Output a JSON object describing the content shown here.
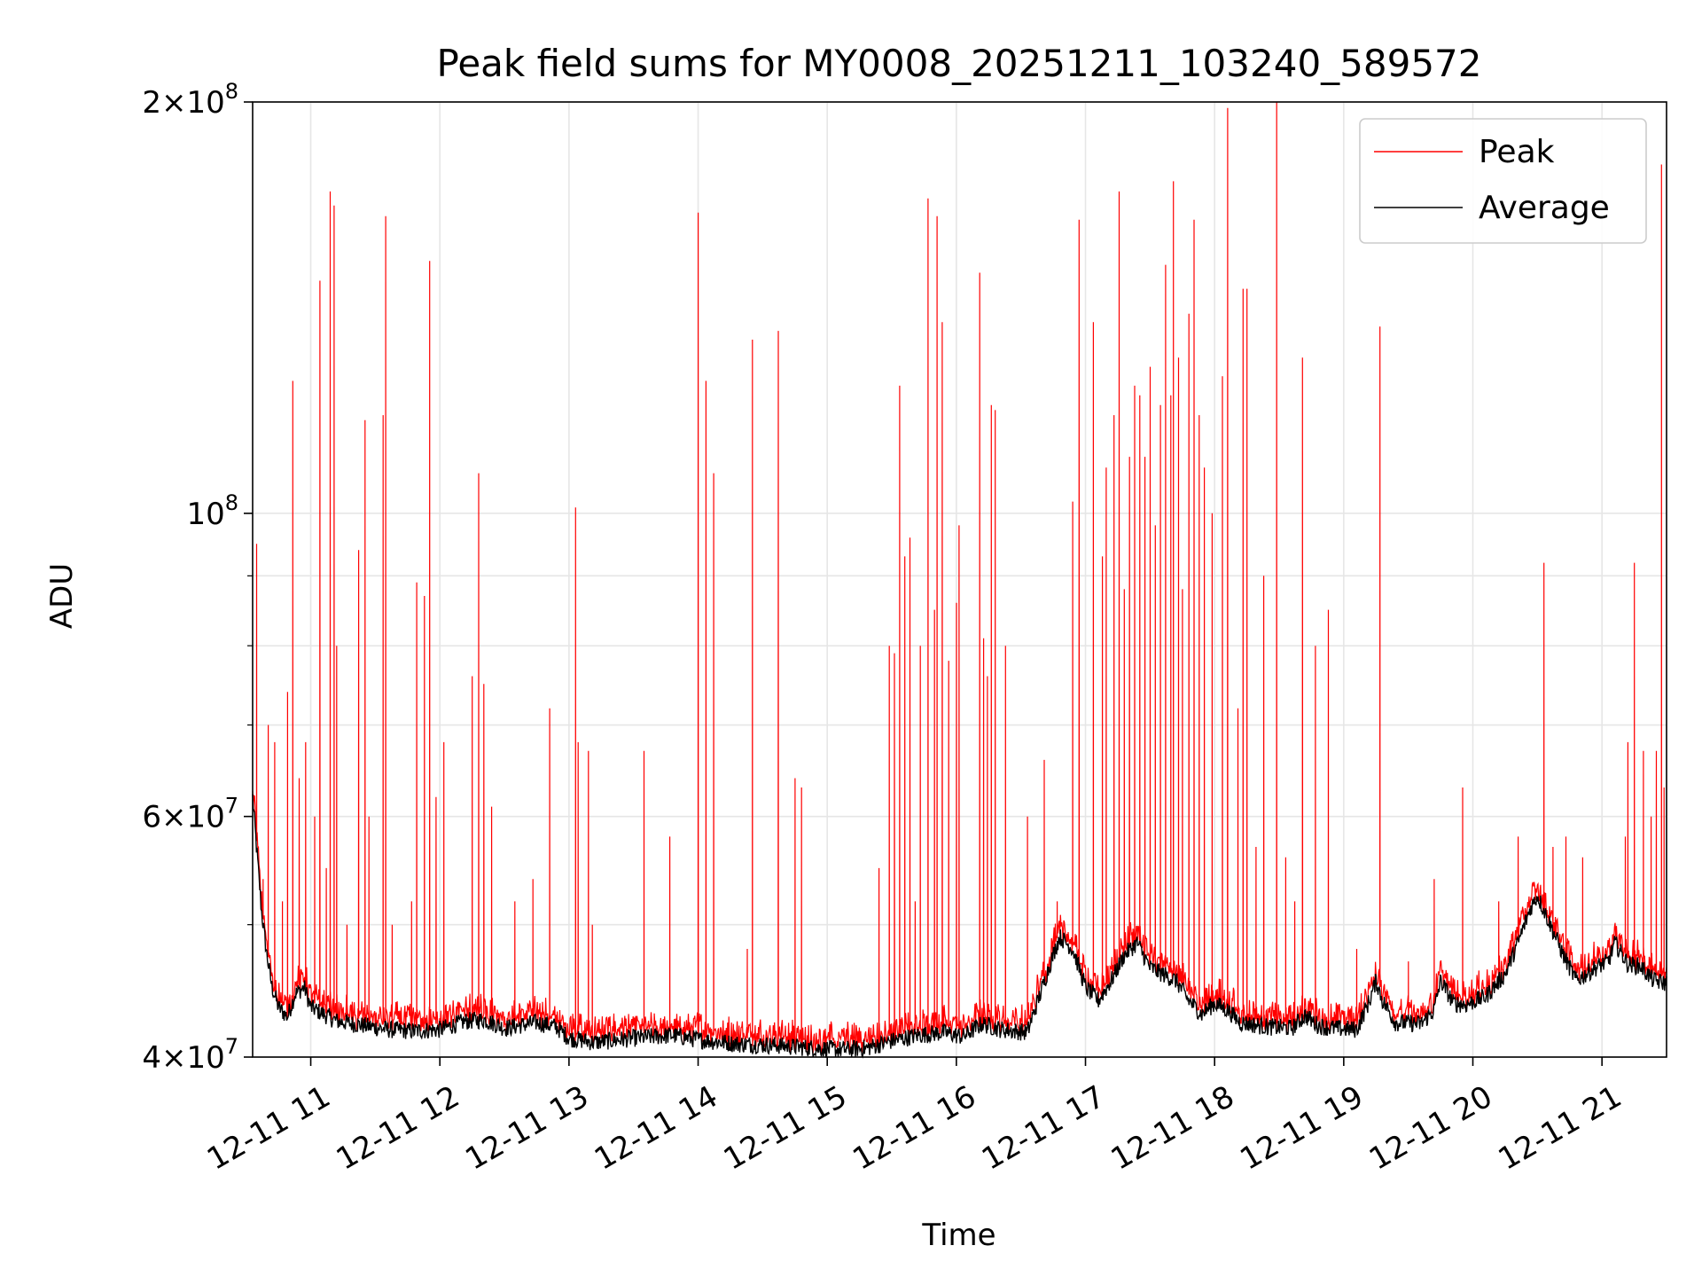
{
  "chart_data": {
    "type": "line",
    "title": "Peak field sums for MY0008_20251211_103240_589572",
    "xlabel": "Time",
    "ylabel": "ADU",
    "yscale": "log",
    "xlim_hours": [
      10.55,
      21.5
    ],
    "ylim": [
      40000000,
      200000000
    ],
    "grid": true,
    "legend_position": "top-right",
    "x_ticks": [
      {
        "hour": 11,
        "label": "12-11 11"
      },
      {
        "hour": 12,
        "label": "12-11 12"
      },
      {
        "hour": 13,
        "label": "12-11 13"
      },
      {
        "hour": 14,
        "label": "12-11 14"
      },
      {
        "hour": 15,
        "label": "12-11 15"
      },
      {
        "hour": 16,
        "label": "12-11 16"
      },
      {
        "hour": 17,
        "label": "12-11 17"
      },
      {
        "hour": 18,
        "label": "12-11 18"
      },
      {
        "hour": 19,
        "label": "12-11 19"
      },
      {
        "hour": 20,
        "label": "12-11 20"
      },
      {
        "hour": 21,
        "label": "12-11 21"
      }
    ],
    "y_major_ticks": [
      {
        "value": 40000000,
        "mant": "4",
        "exp": "7"
      },
      {
        "value": 60000000,
        "mant": "6",
        "exp": "7"
      },
      {
        "value": 100000000,
        "mant": "",
        "exp": "8"
      },
      {
        "value": 200000000,
        "mant": "2",
        "exp": "8"
      }
    ],
    "y_minor_grid": [
      50000000,
      70000000,
      80000000,
      90000000
    ],
    "series": [
      {
        "name": "Peak",
        "color": "#ff0000",
        "description": "Red line: follows average baseline with frequent narrow spikes",
        "spikes": [
          [
            10.58,
            95000000
          ],
          [
            10.63,
            54000000
          ],
          [
            10.67,
            70000000
          ],
          [
            10.72,
            68000000
          ],
          [
            10.78,
            52000000
          ],
          [
            10.82,
            74000000
          ],
          [
            10.86,
            125000000
          ],
          [
            10.91,
            64000000
          ],
          [
            10.96,
            68000000
          ],
          [
            11.03,
            60000000
          ],
          [
            11.07,
            148000000
          ],
          [
            11.12,
            55000000
          ],
          [
            11.15,
            172000000
          ],
          [
            11.18,
            168000000
          ],
          [
            11.2,
            80000000
          ],
          [
            11.28,
            50000000
          ],
          [
            11.37,
            94000000
          ],
          [
            11.42,
            117000000
          ],
          [
            11.45,
            60000000
          ],
          [
            11.56,
            118000000
          ],
          [
            11.58,
            165000000
          ],
          [
            11.63,
            50000000
          ],
          [
            11.78,
            52000000
          ],
          [
            11.82,
            89000000
          ],
          [
            11.88,
            87000000
          ],
          [
            11.92,
            153000000
          ],
          [
            11.97,
            62000000
          ],
          [
            12.03,
            68000000
          ],
          [
            12.25,
            76000000
          ],
          [
            12.3,
            107000000
          ],
          [
            12.34,
            75000000
          ],
          [
            12.4,
            61000000
          ],
          [
            12.58,
            52000000
          ],
          [
            12.72,
            54000000
          ],
          [
            12.85,
            72000000
          ],
          [
            13.05,
            101000000
          ],
          [
            13.07,
            68000000
          ],
          [
            13.15,
            67000000
          ],
          [
            13.18,
            50000000
          ],
          [
            13.58,
            67000000
          ],
          [
            13.78,
            58000000
          ],
          [
            14.0,
            166000000
          ],
          [
            14.06,
            125000000
          ],
          [
            14.12,
            107000000
          ],
          [
            14.38,
            48000000
          ],
          [
            14.42,
            134000000
          ],
          [
            14.62,
            136000000
          ],
          [
            14.75,
            64000000
          ],
          [
            14.8,
            63000000
          ],
          [
            15.4,
            55000000
          ],
          [
            15.48,
            80000000
          ],
          [
            15.52,
            79000000
          ],
          [
            15.56,
            124000000
          ],
          [
            15.6,
            93000000
          ],
          [
            15.64,
            96000000
          ],
          [
            15.68,
            52000000
          ],
          [
            15.72,
            80000000
          ],
          [
            15.78,
            170000000
          ],
          [
            15.83,
            85000000
          ],
          [
            15.85,
            165000000
          ],
          [
            15.89,
            138000000
          ],
          [
            15.94,
            78000000
          ],
          [
            16.0,
            86000000
          ],
          [
            16.02,
            98000000
          ],
          [
            16.18,
            150000000
          ],
          [
            16.21,
            81000000
          ],
          [
            16.24,
            76000000
          ],
          [
            16.27,
            120000000
          ],
          [
            16.3,
            119000000
          ],
          [
            16.38,
            80000000
          ],
          [
            16.55,
            60000000
          ],
          [
            16.68,
            66000000
          ],
          [
            16.78,
            52000000
          ],
          [
            16.9,
            102000000
          ],
          [
            16.95,
            164000000
          ],
          [
            17.06,
            138000000
          ],
          [
            17.13,
            93000000
          ],
          [
            17.16,
            108000000
          ],
          [
            17.22,
            118000000
          ],
          [
            17.26,
            172000000
          ],
          [
            17.3,
            88000000
          ],
          [
            17.34,
            110000000
          ],
          [
            17.38,
            124000000
          ],
          [
            17.42,
            122000000
          ],
          [
            17.46,
            110000000
          ],
          [
            17.5,
            128000000
          ],
          [
            17.54,
            98000000
          ],
          [
            17.58,
            120000000
          ],
          [
            17.62,
            152000000
          ],
          [
            17.66,
            122000000
          ],
          [
            17.68,
            175000000
          ],
          [
            17.72,
            130000000
          ],
          [
            17.75,
            88000000
          ],
          [
            17.8,
            140000000
          ],
          [
            17.84,
            164000000
          ],
          [
            17.88,
            118000000
          ],
          [
            17.92,
            108000000
          ],
          [
            17.98,
            100000000
          ],
          [
            18.06,
            126000000
          ],
          [
            18.1,
            198000000
          ],
          [
            18.18,
            72000000
          ],
          [
            18.22,
            146000000
          ],
          [
            18.25,
            146000000
          ],
          [
            18.32,
            57000000
          ],
          [
            18.38,
            90000000
          ],
          [
            18.48,
            200000000
          ],
          [
            18.55,
            56000000
          ],
          [
            18.62,
            52000000
          ],
          [
            18.68,
            130000000
          ],
          [
            18.78,
            80000000
          ],
          [
            18.88,
            85000000
          ],
          [
            19.28,
            137000000
          ],
          [
            19.1,
            48000000
          ],
          [
            19.5,
            47000000
          ],
          [
            19.7,
            54000000
          ],
          [
            19.92,
            63000000
          ],
          [
            20.2,
            52000000
          ],
          [
            20.35,
            58000000
          ],
          [
            20.55,
            92000000
          ],
          [
            20.62,
            57000000
          ],
          [
            20.72,
            58000000
          ],
          [
            20.85,
            56000000
          ],
          [
            21.18,
            58000000
          ],
          [
            21.2,
            68000000
          ],
          [
            21.25,
            92000000
          ],
          [
            21.32,
            67000000
          ],
          [
            21.38,
            60000000
          ],
          [
            21.42,
            67000000
          ],
          [
            21.46,
            180000000
          ],
          [
            21.48,
            63000000
          ]
        ]
      },
      {
        "name": "Average",
        "color": "#000000",
        "description": "Black line: slowly varying baseline",
        "baseline": [
          [
            10.55,
            62000000
          ],
          [
            10.58,
            57000000
          ],
          [
            10.62,
            51000000
          ],
          [
            10.66,
            47500000
          ],
          [
            10.7,
            45000000
          ],
          [
            10.75,
            43500000
          ],
          [
            10.82,
            42800000
          ],
          [
            10.88,
            44500000
          ],
          [
            10.95,
            45000000
          ],
          [
            11.0,
            43500000
          ],
          [
            11.1,
            43000000
          ],
          [
            11.2,
            42500000
          ],
          [
            11.4,
            42200000
          ],
          [
            11.6,
            41900000
          ],
          [
            11.8,
            41800000
          ],
          [
            12.0,
            41900000
          ],
          [
            12.2,
            42500000
          ],
          [
            12.35,
            42600000
          ],
          [
            12.5,
            42000000
          ],
          [
            12.75,
            42400000
          ],
          [
            12.9,
            42100000
          ],
          [
            13.0,
            41300000
          ],
          [
            13.2,
            41000000
          ],
          [
            13.5,
            41300000
          ],
          [
            13.8,
            41500000
          ],
          [
            14.0,
            41200000
          ],
          [
            14.3,
            40900000
          ],
          [
            14.6,
            40800000
          ],
          [
            14.9,
            40600000
          ],
          [
            15.1,
            40500000
          ],
          [
            15.3,
            40600000
          ],
          [
            15.5,
            41100000
          ],
          [
            15.7,
            41500000
          ],
          [
            15.9,
            41700000
          ],
          [
            16.05,
            41400000
          ],
          [
            16.2,
            42300000
          ],
          [
            16.35,
            41900000
          ],
          [
            16.55,
            41700000
          ],
          [
            16.65,
            44500000
          ],
          [
            16.75,
            47500000
          ],
          [
            16.8,
            49000000
          ],
          [
            16.9,
            48000000
          ],
          [
            17.0,
            45000000
          ],
          [
            17.1,
            44000000
          ],
          [
            17.2,
            45500000
          ],
          [
            17.3,
            47500000
          ],
          [
            17.4,
            48500000
          ],
          [
            17.5,
            46500000
          ],
          [
            17.6,
            46000000
          ],
          [
            17.7,
            45500000
          ],
          [
            17.8,
            44000000
          ],
          [
            17.9,
            43000000
          ],
          [
            18.0,
            43800000
          ],
          [
            18.1,
            43300000
          ],
          [
            18.2,
            42400000
          ],
          [
            18.4,
            42100000
          ],
          [
            18.6,
            42000000
          ],
          [
            18.7,
            42900000
          ],
          [
            18.8,
            42200000
          ],
          [
            18.9,
            42000000
          ],
          [
            19.1,
            41900000
          ],
          [
            19.2,
            44000000
          ],
          [
            19.25,
            45500000
          ],
          [
            19.3,
            44000000
          ],
          [
            19.4,
            42400000
          ],
          [
            19.6,
            42300000
          ],
          [
            19.7,
            43300000
          ],
          [
            19.75,
            45500000
          ],
          [
            19.85,
            43800000
          ],
          [
            19.95,
            43700000
          ],
          [
            20.1,
            44300000
          ],
          [
            20.25,
            46000000
          ],
          [
            20.35,
            48500000
          ],
          [
            20.45,
            51500000
          ],
          [
            20.5,
            52500000
          ],
          [
            20.58,
            50500000
          ],
          [
            20.7,
            47500000
          ],
          [
            20.8,
            45500000
          ],
          [
            20.95,
            46500000
          ],
          [
            21.05,
            47000000
          ],
          [
            21.1,
            48500000
          ],
          [
            21.2,
            46800000
          ],
          [
            21.3,
            46600000
          ],
          [
            21.4,
            45500000
          ],
          [
            21.5,
            45300000
          ]
        ]
      }
    ]
  }
}
